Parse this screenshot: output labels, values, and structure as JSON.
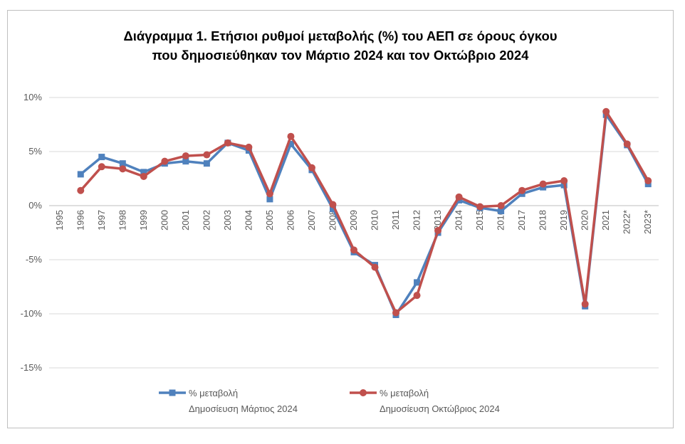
{
  "chart_data": {
    "type": "line",
    "title_line1": "Διάγραμμα 1. Ετήσιοι ρυθμοί μεταβολής (%) του ΑΕΠ σε όρους όγκου",
    "title_line2": "που δημοσιεύθηκαν τον Μάρτιο 2024 και τον Οκτώβριο 2024",
    "categories": [
      "1995",
      "1996",
      "1997",
      "1998",
      "1999",
      "2000",
      "2001",
      "2002",
      "2003",
      "2004",
      "2005",
      "2006",
      "2007",
      "2008",
      "2009",
      "2010",
      "2011",
      "2012",
      "2013",
      "2014",
      "2015",
      "2016",
      "2017",
      "2018",
      "2019",
      "2020",
      "2021",
      "2022*",
      "2023*"
    ],
    "y_tick_labels": [
      "10%",
      "5%",
      "0%",
      "-5%",
      "-10%",
      "-15%"
    ],
    "y_ticks": [
      10,
      5,
      0,
      -5,
      -10,
      -15
    ],
    "ylim": [
      -15,
      10
    ],
    "grid": true,
    "legend_position": "bottom",
    "series": [
      {
        "name_line1": "% μεταβολή",
        "name_line2": "Δημοσίευση Μάρτιος 2024",
        "color": "#4f81bd",
        "marker": "square",
        "values": [
          null,
          2.9,
          4.5,
          3.9,
          3.1,
          3.9,
          4.1,
          3.9,
          5.8,
          5.1,
          0.6,
          5.7,
          3.3,
          -0.3,
          -4.3,
          -5.5,
          -10.1,
          -7.1,
          -2.5,
          0.5,
          -0.2,
          -0.5,
          1.1,
          1.7,
          1.9,
          -9.3,
          8.4,
          5.6,
          2.0
        ]
      },
      {
        "name_line1": "% μεταβολή",
        "name_line2": "Δημοσίευση Οκτώβριος 2024",
        "color": "#c0504d",
        "marker": "circle",
        "values": [
          null,
          1.4,
          3.6,
          3.4,
          2.7,
          4.1,
          4.6,
          4.7,
          5.8,
          5.4,
          1.1,
          6.4,
          3.5,
          0.1,
          -4.1,
          -5.7,
          -9.9,
          -8.3,
          -2.3,
          0.8,
          -0.1,
          0.0,
          1.4,
          2.0,
          2.3,
          -9.1,
          8.7,
          5.7,
          2.3
        ]
      }
    ]
  }
}
